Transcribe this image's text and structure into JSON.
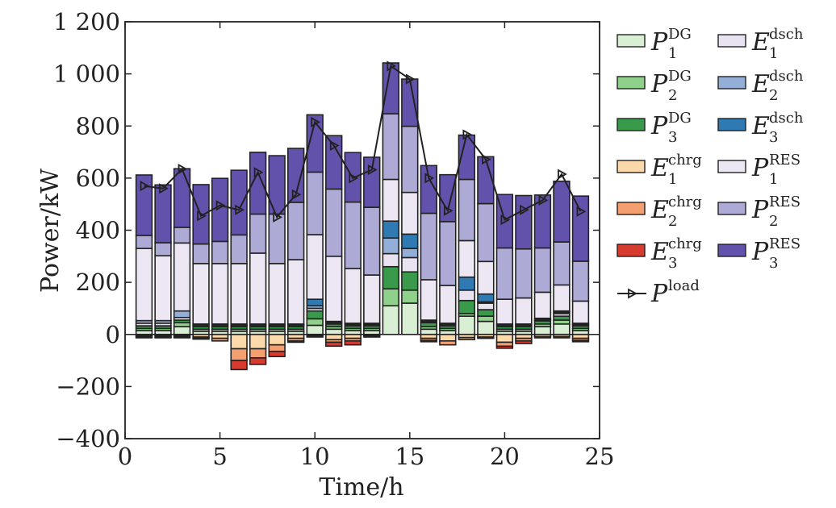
{
  "chart_data": {
    "type": "bar",
    "xlabel": "Time/h",
    "ylabel": "Power/kW",
    "xlim": [
      0,
      25
    ],
    "ylim": [
      -400,
      1200
    ],
    "xticks": [
      0,
      5,
      10,
      15,
      20,
      25
    ],
    "xtick_labels": [
      "0",
      "5",
      "10",
      "15",
      "20",
      "25"
    ],
    "yticks": [
      -400,
      -200,
      0,
      200,
      400,
      600,
      800,
      1000,
      1200
    ],
    "ytick_labels": [
      "−400",
      "−200",
      "0",
      "200",
      "400",
      "600",
      "800",
      "1 000",
      "1 200"
    ],
    "x": [
      1,
      2,
      3,
      4,
      5,
      6,
      7,
      8,
      9,
      10,
      11,
      12,
      13,
      14,
      15,
      16,
      17,
      18,
      19,
      20,
      21,
      22,
      23,
      24
    ],
    "legend_position": "right, outside plot, two columns",
    "colors": {
      "axis": "#222222",
      "bar_edge": "#222222",
      "line": "#222222"
    },
    "series": [
      {
        "name": "P1DG",
        "main": "P",
        "sup": "DG",
        "sub": "1",
        "color": "#d9efd3",
        "stack": "positive",
        "values": [
          15,
          15,
          30,
          12,
          12,
          12,
          12,
          12,
          12,
          35,
          20,
          15,
          15,
          110,
          120,
          20,
          15,
          70,
          50,
          12,
          12,
          30,
          40,
          15
        ]
      },
      {
        "name": "P2DG",
        "main": "P",
        "sup": "DG",
        "sub": "2",
        "color": "#8fd18b",
        "stack": "positive",
        "values": [
          8,
          8,
          15,
          8,
          8,
          8,
          8,
          8,
          8,
          25,
          10,
          8,
          8,
          65,
          50,
          10,
          8,
          10,
          20,
          8,
          8,
          10,
          15,
          8
        ]
      },
      {
        "name": "P3DG",
        "main": "P",
        "sup": "DG",
        "sub": "3",
        "color": "#3a9a4b",
        "stack": "positive",
        "values": [
          10,
          10,
          10,
          10,
          10,
          10,
          10,
          10,
          10,
          30,
          10,
          10,
          10,
          85,
          70,
          15,
          10,
          50,
          25,
          10,
          10,
          12,
          15,
          10
        ]
      },
      {
        "name": "E1dsch",
        "main": "E",
        "sup": "dsch",
        "sub": "1",
        "color": "#e8e2f1",
        "stack": "positive",
        "values": [
          10,
          10,
          10,
          5,
          5,
          5,
          5,
          5,
          5,
          10,
          5,
          5,
          5,
          50,
          55,
          5,
          5,
          40,
          25,
          5,
          5,
          5,
          10,
          5
        ]
      },
      {
        "name": "E2dsch",
        "main": "E",
        "sup": "dsch",
        "sub": "2",
        "color": "#94afd7",
        "stack": "positive",
        "values": [
          10,
          10,
          25,
          5,
          5,
          5,
          5,
          5,
          5,
          10,
          5,
          5,
          5,
          60,
          35,
          5,
          5,
          0,
          5,
          5,
          5,
          5,
          5,
          5
        ]
      },
      {
        "name": "E3dsch",
        "main": "E",
        "sup": "dsch",
        "sub": "3",
        "color": "#2f7ab3",
        "stack": "positive",
        "values": [
          0,
          0,
          0,
          0,
          0,
          0,
          0,
          0,
          0,
          25,
          0,
          0,
          0,
          65,
          55,
          0,
          0,
          50,
          30,
          0,
          0,
          0,
          5,
          0
        ]
      },
      {
        "name": "P1RES",
        "main": "P",
        "sup": "RES",
        "sub": "1",
        "color": "#ede7f4",
        "stack": "positive",
        "values": [
          277,
          249,
          261,
          232,
          232,
          232,
          272,
          232,
          247,
          248,
          250,
          210,
          185,
          160,
          160,
          155,
          145,
          140,
          125,
          95,
          100,
          100,
          100,
          85
        ]
      },
      {
        "name": "P2RES",
        "main": "P",
        "sup": "RES",
        "sub": "2",
        "color": "#adaad6",
        "stack": "positive",
        "values": [
          50,
          50,
          60,
          75,
          85,
          110,
          150,
          190,
          220,
          240,
          258,
          255,
          260,
          252,
          254,
          255,
          245,
          235,
          222,
          197,
          188,
          170,
          165,
          153
        ]
      },
      {
        "name": "P3RES",
        "main": "P",
        "sup": "RES",
        "sub": "3",
        "color": "#6352ab",
        "stack": "positive",
        "values": [
          232,
          222,
          225,
          228,
          242,
          248,
          237,
          224,
          207,
          220,
          205,
          190,
          192,
          195,
          181,
          183,
          180,
          170,
          180,
          205,
          205,
          203,
          233,
          250
        ]
      },
      {
        "name": "E1chrg",
        "main": "E",
        "sup": "chrg",
        "sub": "1",
        "color": "#fcd9aa",
        "stack": "negative",
        "values": [
          -5,
          -5,
          -5,
          -10,
          -15,
          -55,
          -55,
          -40,
          -15,
          -5,
          -20,
          -15,
          -5,
          0,
          0,
          -15,
          -25,
          -12,
          -10,
          -30,
          -15,
          -8,
          -8,
          -15
        ]
      },
      {
        "name": "E2chrg",
        "main": "E",
        "sup": "chrg",
        "sub": "2",
        "color": "#f49f6f",
        "stack": "negative",
        "values": [
          -5,
          -5,
          -5,
          -5,
          -10,
          -45,
          -35,
          -25,
          -10,
          -5,
          -10,
          -10,
          -5,
          0,
          0,
          -8,
          -15,
          -8,
          -5,
          -15,
          -10,
          -5,
          -5,
          -8
        ]
      },
      {
        "name": "E3chrg",
        "main": "E",
        "sup": "chrg",
        "sub": "3",
        "color": "#d73a2f",
        "stack": "negative",
        "values": [
          -3,
          -3,
          -3,
          -3,
          0,
          -35,
          -25,
          -20,
          -5,
          0,
          -15,
          -15,
          0,
          0,
          0,
          -5,
          0,
          0,
          0,
          -8,
          -10,
          0,
          0,
          -5
        ]
      },
      {
        "name": "Pload",
        "main": "P",
        "sup": "load",
        "sub": "",
        "color": "#222222",
        "stack": "line",
        "values": [
          570,
          560,
          635,
          455,
          495,
          478,
          622,
          450,
          537,
          815,
          725,
          600,
          632,
          1030,
          980,
          600,
          475,
          767,
          672,
          440,
          478,
          515,
          615,
          472
        ]
      }
    ]
  }
}
